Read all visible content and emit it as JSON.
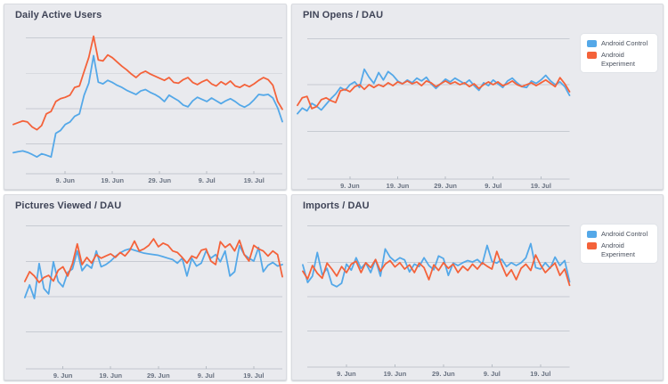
{
  "colors": {
    "control": "#54a8e8",
    "experiment": "#f4623a",
    "panel_bg": "#e9eaee",
    "grid": "#c7cbd2",
    "axis": "#c2c6cd",
    "tick_mark": "#b6bcc4",
    "title": "#3f4457",
    "tick_label": "#687180",
    "legend_bg": "#ffffff",
    "legend_text": "#4a515e"
  },
  "legend": {
    "items": [
      {
        "label": "Android Control",
        "color_key": "control"
      },
      {
        "label": "Android Experiment",
        "color_key": "experiment"
      }
    ]
  },
  "x_ticks": [
    "9. Jun",
    "19. Jun",
    "29. Jun",
    "9. Jul",
    "19. Jul"
  ],
  "chart_data": [
    {
      "type": "line",
      "title": "Daily Active Users",
      "position": "top-left",
      "xlabel": "",
      "ylabel": "",
      "units": "relative (no y-axis labels shown)",
      "x_tick_labels": [
        "9. Jun",
        "19. Jun",
        "29. Jun",
        "9. Jul",
        "19. Jul"
      ],
      "x_range": "daily points, ~29 May - 25 Jul",
      "ylim": [
        0.15,
        4.3
      ],
      "gridline_values": [
        1,
        2,
        3,
        4
      ],
      "grid": true,
      "legend_position": "none",
      "series": [
        {
          "name": "Android Control",
          "color_key": "control",
          "values": [
            0.75,
            0.78,
            0.8,
            0.76,
            0.7,
            0.63,
            0.72,
            0.68,
            0.63,
            1.3,
            1.38,
            1.55,
            1.62,
            1.78,
            1.85,
            2.38,
            2.72,
            3.5,
            2.75,
            2.7,
            2.8,
            2.74,
            2.66,
            2.6,
            2.52,
            2.46,
            2.4,
            2.5,
            2.54,
            2.46,
            2.4,
            2.32,
            2.2,
            2.38,
            2.3,
            2.22,
            2.1,
            2.05,
            2.22,
            2.32,
            2.26,
            2.2,
            2.3,
            2.22,
            2.14,
            2.22,
            2.28,
            2.2,
            2.1,
            2.04,
            2.12,
            2.25,
            2.4,
            2.38,
            2.4,
            2.3,
            2.02,
            1.63
          ]
        },
        {
          "name": "Android Experiment",
          "color_key": "experiment",
          "values": [
            1.55,
            1.6,
            1.65,
            1.62,
            1.48,
            1.4,
            1.52,
            1.85,
            1.92,
            2.2,
            2.28,
            2.32,
            2.38,
            2.6,
            2.64,
            3.05,
            3.45,
            4.05,
            3.38,
            3.35,
            3.52,
            3.44,
            3.32,
            3.2,
            3.1,
            2.98,
            2.88,
            3.0,
            3.06,
            2.98,
            2.92,
            2.86,
            2.8,
            2.88,
            2.74,
            2.72,
            2.82,
            2.88,
            2.74,
            2.68,
            2.76,
            2.82,
            2.7,
            2.64,
            2.76,
            2.68,
            2.78,
            2.64,
            2.6,
            2.68,
            2.62,
            2.7,
            2.8,
            2.88,
            2.82,
            2.66,
            2.2,
            1.98
          ]
        }
      ]
    },
    {
      "type": "line",
      "title": "PIN Opens / DAU",
      "position": "top-right",
      "xlabel": "",
      "ylabel": "",
      "units": "relative (no y-axis labels shown)",
      "x_tick_labels": [
        "9. Jun",
        "19. Jun",
        "29. Jun",
        "9. Jul",
        "19. Jul"
      ],
      "x_range": "daily points, ~29 May - 25 Jul",
      "ylim": [
        0,
        3.2
      ],
      "gridline_values": [
        1,
        2,
        3
      ],
      "grid": true,
      "legend_position": "right",
      "series": [
        {
          "name": "Android Control",
          "color_key": "control",
          "values": [
            1.4,
            1.52,
            1.46,
            1.62,
            1.56,
            1.48,
            1.6,
            1.72,
            1.82,
            1.96,
            1.9,
            2.02,
            2.08,
            1.96,
            2.35,
            2.18,
            2.05,
            2.28,
            2.12,
            2.3,
            2.22,
            2.1,
            2.04,
            2.12,
            2.06,
            2.16,
            2.1,
            2.18,
            2.04,
            1.94,
            2.04,
            2.14,
            2.08,
            2.16,
            2.1,
            2.04,
            2.12,
            2.0,
            1.9,
            2.06,
            2.0,
            2.12,
            2.04,
            1.96,
            2.1,
            2.16,
            2.06,
            1.98,
            1.96,
            2.1,
            2.05,
            2.12,
            2.22,
            2.1,
            2.02,
            2.08,
            1.98,
            1.79
          ]
        },
        {
          "name": "Android Experiment",
          "color_key": "experiment",
          "values": [
            1.58,
            1.74,
            1.77,
            1.51,
            1.55,
            1.7,
            1.74,
            1.68,
            1.64,
            1.89,
            1.92,
            1.87,
            1.98,
            2.02,
            1.92,
            2.02,
            1.96,
            2.02,
            1.98,
            2.06,
            2.0,
            2.08,
            2.04,
            2.1,
            2.04,
            2.08,
            2.0,
            2.1,
            2.06,
            1.98,
            2.04,
            2.1,
            2.04,
            2.08,
            2.02,
            2.06,
            1.98,
            2.04,
            1.94,
            2.02,
            2.08,
            2.02,
            2.08,
            2.0,
            2.04,
            2.1,
            2.02,
            1.98,
            2.02,
            2.06,
            2.0,
            2.06,
            2.12,
            2.05,
            1.98,
            2.17,
            2.04,
            1.87
          ]
        }
      ]
    },
    {
      "type": "line",
      "title": "Pictures Viewed / DAU",
      "position": "bottom-left",
      "xlabel": "",
      "ylabel": "",
      "units": "relative (no y-axis labels shown)",
      "x_tick_labels": [
        "9. Jun",
        "19. Jun",
        "29. Jun",
        "9. Jul",
        "19. Jul"
      ],
      "x_range": "daily points, ~1 Jun - 25 Jul",
      "ylim": [
        0,
        4.2
      ],
      "gridline_values": [
        1,
        2,
        3,
        4
      ],
      "grid": true,
      "legend_position": "none",
      "series": [
        {
          "name": "Android Control",
          "color_key": "control",
          "values": [
            2.0,
            2.35,
            1.97,
            2.95,
            2.25,
            2.1,
            3.0,
            2.45,
            2.3,
            2.7,
            2.8,
            3.3,
            2.75,
            2.92,
            2.82,
            3.3,
            2.86,
            2.92,
            3.02,
            3.15,
            3.25,
            3.32,
            3.36,
            3.32,
            3.28,
            3.24,
            3.22,
            3.2,
            3.18,
            3.14,
            3.1,
            3.06,
            2.96,
            3.1,
            2.6,
            3.1,
            2.88,
            2.96,
            3.3,
            3.1,
            3.2,
            3.0,
            3.3,
            2.6,
            2.72,
            3.45,
            3.2,
            3.1,
            3.02,
            3.4,
            2.72,
            2.9,
            2.98,
            2.88,
            2.92
          ]
        },
        {
          "name": "Android Experiment",
          "color_key": "experiment",
          "values": [
            2.45,
            2.72,
            2.6,
            2.42,
            2.56,
            2.62,
            2.46,
            2.76,
            2.86,
            2.6,
            2.95,
            3.5,
            2.92,
            3.12,
            2.96,
            3.2,
            3.1,
            3.16,
            3.22,
            3.12,
            3.26,
            3.16,
            3.32,
            3.58,
            3.3,
            3.36,
            3.46,
            3.64,
            3.42,
            3.52,
            3.46,
            3.3,
            3.26,
            3.12,
            2.96,
            3.16,
            3.1,
            3.32,
            3.36,
            3.02,
            2.92,
            3.56,
            3.4,
            3.5,
            3.3,
            3.6,
            3.2,
            3.02,
            3.46,
            3.36,
            3.3,
            3.16,
            3.3,
            3.2,
            2.58
          ]
        }
      ]
    },
    {
      "type": "line",
      "title": "Imports / DAU",
      "position": "bottom-right",
      "xlabel": "",
      "ylabel": "",
      "units": "relative (no y-axis labels shown)",
      "x_tick_labels": [
        "9. Jun",
        "19. Jun",
        "29. Jun",
        "9. Jul",
        "19. Jul"
      ],
      "x_range": "daily points, ~31 May - 25 Jul",
      "ylim": [
        0,
        4.3
      ],
      "gridline_values": [
        1,
        2,
        3,
        4
      ],
      "grid": true,
      "legend_position": "right",
      "series": [
        {
          "name": "Android Control",
          "color_key": "control",
          "values": [
            2.9,
            2.4,
            2.58,
            3.25,
            2.62,
            2.8,
            2.35,
            2.28,
            2.38,
            2.92,
            2.75,
            3.1,
            2.8,
            2.95,
            2.68,
            3.05,
            2.58,
            3.35,
            3.12,
            3.0,
            3.1,
            3.04,
            2.7,
            2.92,
            2.85,
            3.1,
            2.88,
            2.76,
            3.15,
            3.08,
            2.6,
            2.95,
            2.88,
            2.96,
            3.02,
            2.98,
            3.05,
            2.92,
            3.45,
            3.0,
            2.95,
            3.06,
            2.85,
            2.96,
            2.88,
            2.96,
            3.1,
            3.5,
            2.82,
            2.78,
            2.96,
            2.8,
            3.12,
            2.88,
            3.02,
            2.42
          ]
        },
        {
          "name": "Android Experiment",
          "color_key": "experiment",
          "values": [
            2.72,
            2.5,
            2.88,
            2.66,
            2.52,
            2.95,
            2.78,
            2.58,
            2.85,
            2.68,
            2.92,
            3.0,
            2.68,
            2.96,
            2.82,
            3.05,
            2.72,
            2.92,
            3.02,
            2.84,
            2.96,
            2.78,
            2.9,
            2.68,
            2.95,
            2.82,
            2.48,
            2.9,
            2.74,
            2.96,
            2.8,
            2.92,
            2.68,
            2.86,
            2.74,
            2.92,
            2.78,
            2.96,
            2.86,
            2.78,
            3.28,
            2.9,
            2.58,
            2.76,
            2.48,
            2.8,
            2.92,
            2.74,
            3.18,
            2.9,
            2.68,
            2.82,
            2.95,
            2.6,
            2.78,
            2.32
          ]
        }
      ]
    }
  ]
}
